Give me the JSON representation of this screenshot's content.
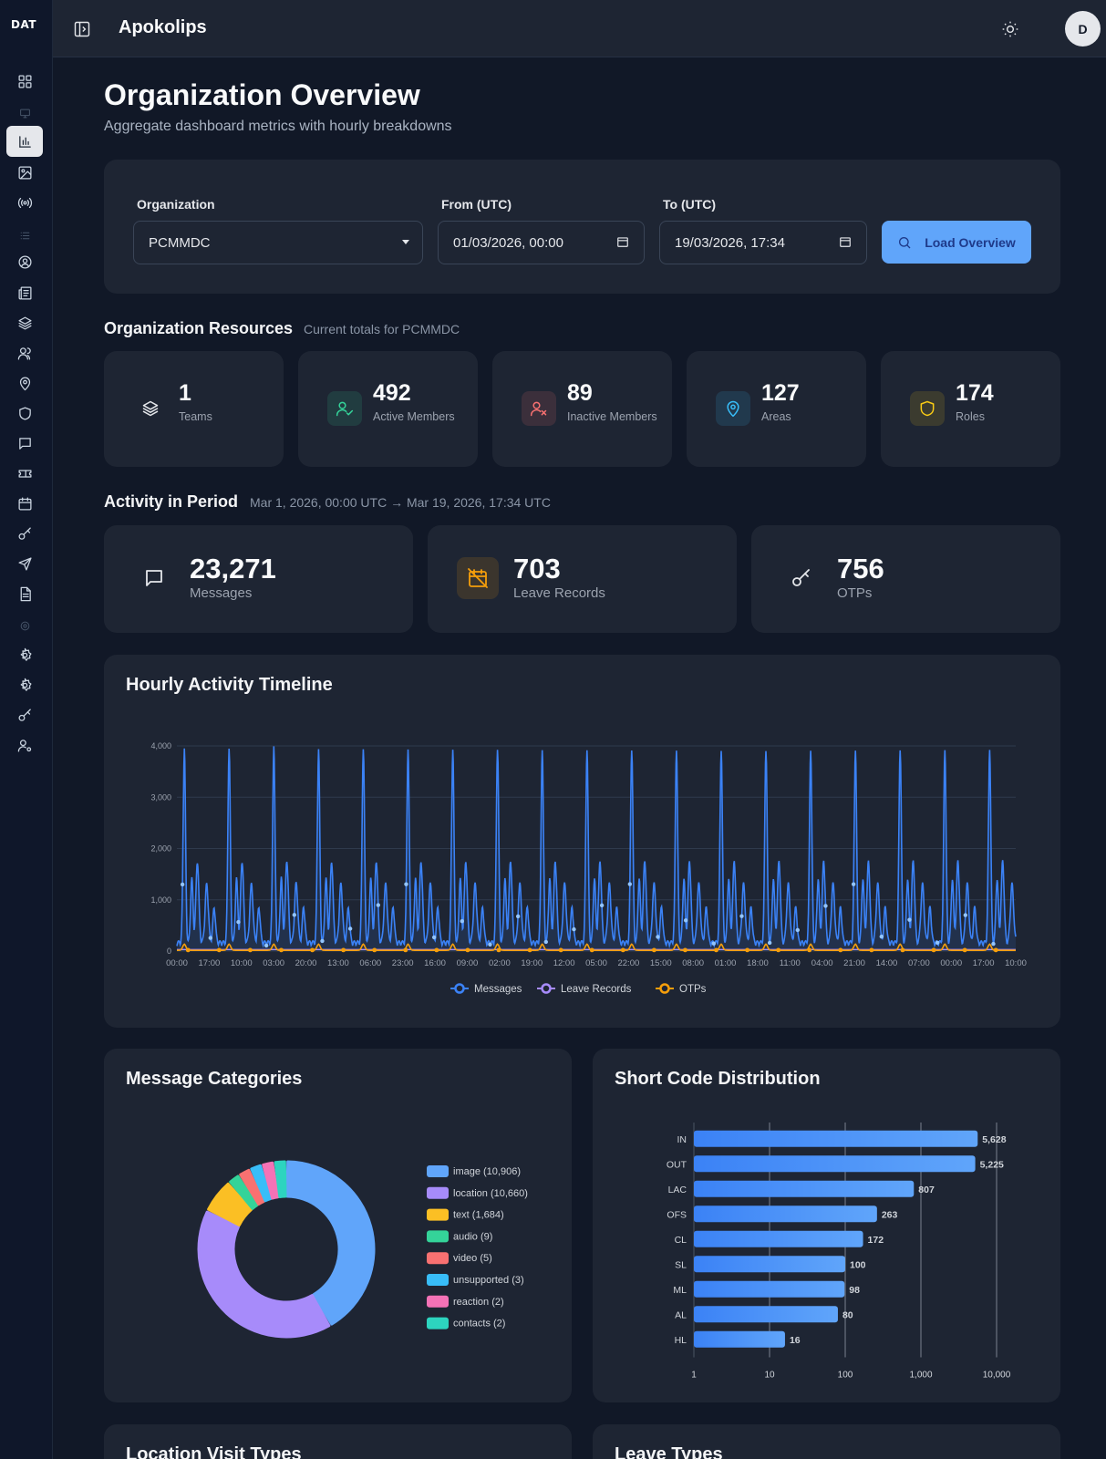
{
  "brand": {
    "logo_text": "DAT",
    "app_title": "Apokolips",
    "avatar_initial": "D"
  },
  "sidebar": {
    "items": [
      {
        "icon": "grid-icon"
      },
      {
        "icon": "monitor-icon"
      },
      {
        "icon": "bar-chart-icon"
      },
      {
        "icon": "image-icon"
      },
      {
        "icon": "broadcast-icon"
      },
      {
        "icon": "list-icon"
      },
      {
        "icon": "user-circle-icon"
      },
      {
        "icon": "newspaper-icon"
      },
      {
        "icon": "layers-icon"
      },
      {
        "icon": "users-icon"
      },
      {
        "icon": "map-pin-icon"
      },
      {
        "icon": "shield-icon"
      },
      {
        "icon": "message-icon"
      },
      {
        "icon": "ticket-icon"
      },
      {
        "icon": "calendar-icon"
      },
      {
        "icon": "key-icon"
      },
      {
        "icon": "send-icon"
      },
      {
        "icon": "file-text-icon"
      },
      {
        "icon": "cog-icon"
      },
      {
        "icon": "settings-icon"
      },
      {
        "icon": "settings-icon"
      },
      {
        "icon": "key-icon"
      },
      {
        "icon": "user-cog-icon"
      }
    ]
  },
  "header": {
    "title": "Organization Overview",
    "subtitle": "Aggregate dashboard metrics with hourly breakdowns"
  },
  "filters": {
    "organization_label": "Organization",
    "organization_value": "PCMMDC",
    "from_label": "From (UTC)",
    "from_value": "01/03/2026, 00:00",
    "to_label": "To (UTC)",
    "to_value": "19/03/2026, 17:34",
    "load_button": "Load Overview"
  },
  "resources": {
    "title": "Organization Resources",
    "subtitle": "Current totals for PCMMDC",
    "cards": [
      {
        "value": "1",
        "label": "Teams",
        "icon": "layers-icon",
        "color": "#e5e7eb"
      },
      {
        "value": "492",
        "label": "Active Members",
        "icon": "user-check-icon",
        "color": "#34d399"
      },
      {
        "value": "89",
        "label": "Inactive Members",
        "icon": "user-x-icon",
        "color": "#f87171"
      },
      {
        "value": "127",
        "label": "Areas",
        "icon": "map-pin-icon",
        "color": "#38bdf8"
      },
      {
        "value": "174",
        "label": "Roles",
        "icon": "shield-icon",
        "color": "#facc15"
      }
    ]
  },
  "activity": {
    "title": "Activity in Period",
    "subtitle": "Mar 1, 2026, 00:00 UTC → Mar 19, 2026, 17:34 UTC",
    "cards": [
      {
        "value": "23,271",
        "label": "Messages",
        "icon": "message-icon",
        "color": "#e5e7eb"
      },
      {
        "value": "703",
        "label": "Leave Records",
        "icon": "calendar-off-icon",
        "color": "#f59e0b"
      },
      {
        "value": "756",
        "label": "OTPs",
        "icon": "key-icon",
        "color": "#e5e7eb"
      }
    ]
  },
  "timeline": {
    "title": "Hourly Activity Timeline"
  },
  "categories": {
    "title": "Message Categories"
  },
  "shortcodes": {
    "title": "Short Code Distribution"
  },
  "bottom": {
    "left_title": "Location Visit Types",
    "right_title": "Leave Types"
  },
  "chart_data": [
    {
      "type": "line",
      "x_ticks": [
        "00:00",
        "17:00",
        "10:00",
        "03:00",
        "20:00",
        "13:00",
        "06:00",
        "23:00",
        "16:00",
        "09:00",
        "02:00",
        "19:00",
        "12:00",
        "05:00",
        "22:00",
        "15:00",
        "08:00",
        "01:00",
        "18:00",
        "11:00",
        "04:00",
        "21:00",
        "14:00",
        "07:00",
        "00:00",
        "17:00",
        "10:00"
      ],
      "ylim": [
        0,
        4000
      ],
      "y_ticks": [
        "4,000",
        "3,000",
        "2,000",
        "1,000",
        "0"
      ],
      "daily_peak_values": [
        3800,
        3800,
        3850,
        3800,
        3800,
        3800,
        3800,
        3800,
        3800,
        3800,
        3800,
        3800,
        3800,
        3800,
        3800,
        3800,
        3800,
        3800
      ],
      "series": [
        {
          "name": "Messages",
          "color": "#3b82f6",
          "typical_daily_max": 3800,
          "typical_baseline": 200
        },
        {
          "name": "Leave Records",
          "color": "#a78bfa",
          "typical_value": 30
        },
        {
          "name": "OTPs",
          "color": "#f59e0b",
          "typical_daily_max": 120
        }
      ],
      "grid": true,
      "legend": "bottom"
    },
    {
      "type": "pie",
      "donut": true,
      "legend_labels": [
        "image (10,906)",
        "location (10,660)",
        "text (1,684)",
        "audio (9)",
        "video (5)",
        "unsupported (3)",
        "reaction (2)",
        "contacts (2)"
      ],
      "categories": [
        "image",
        "location",
        "text",
        "audio",
        "video",
        "unsupported",
        "reaction",
        "contacts"
      ],
      "values": [
        10906,
        10660,
        1684,
        9,
        5,
        3,
        2,
        2
      ],
      "colors": [
        "#60a5fa",
        "#a78bfa",
        "#fbbf24",
        "#34d399",
        "#f87171",
        "#38bdf8",
        "#f472b6",
        "#2dd4bf"
      ],
      "legend": "right"
    },
    {
      "type": "bar",
      "orientation": "horizontal",
      "scale": "log",
      "categories": [
        "IN",
        "OUT",
        "LAC",
        "OFS",
        "CL",
        "SL",
        "ML",
        "AL",
        "HL"
      ],
      "values": [
        5628,
        5225,
        807,
        263,
        172,
        100,
        98,
        80,
        16
      ],
      "value_labels": [
        "5,628",
        "5,225",
        "807",
        "263",
        "172",
        "100",
        "98",
        "80",
        "16"
      ],
      "x_ticks": [
        "1",
        "10",
        "100",
        "1,000",
        "10,000"
      ],
      "xlim": [
        1,
        10000
      ],
      "color": "#3b82f6"
    }
  ]
}
